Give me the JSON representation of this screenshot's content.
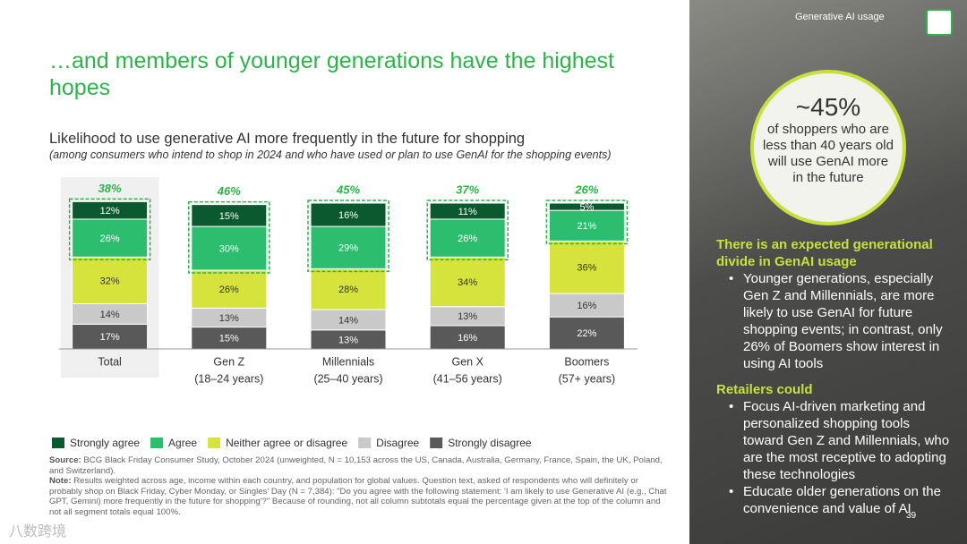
{
  "header": {
    "title": "…and members of younger generations have the highest hopes"
  },
  "chart_data": {
    "type": "bar",
    "stacked": true,
    "title": "Likelihood to use generative AI more frequently in the future for shopping",
    "subtitle": "(among consumers who intend to shop in 2024 and who have used or plan to use GenAI for the shopping events)",
    "categories": [
      "Total",
      "Gen Z",
      "Millennials",
      "Gen X",
      "Boomers"
    ],
    "category_sublabels": [
      null,
      "(18–24 years)",
      "(25–40 years)",
      "(41–56 years)",
      "(57+ years)"
    ],
    "highlight": 0,
    "ylim": [
      0,
      100
    ],
    "series": [
      {
        "name": "Strongly agree",
        "color": "#0b5a2f",
        "label_color": "#ffffff",
        "values": [
          12,
          15,
          16,
          11,
          5
        ],
        "value_labels": [
          "12%",
          "15%",
          "16%",
          "11%",
          "5%"
        ]
      },
      {
        "name": "Agree",
        "color": "#2dbd6e",
        "label_color": "#ffffff",
        "values": [
          26,
          30,
          29,
          26,
          21
        ],
        "value_labels": [
          "26%",
          "30%",
          "29%",
          "26%",
          "21%"
        ]
      },
      {
        "name": "Neither agree or disagree",
        "color": "#d6e33c",
        "label_color": "#333333",
        "values": [
          32,
          26,
          28,
          34,
          36
        ],
        "value_labels": [
          "32%",
          "26%",
          "28%",
          "34%",
          "36%"
        ]
      },
      {
        "name": "Disagree",
        "color": "#c9c9c9",
        "label_color": "#333333",
        "values": [
          14,
          13,
          14,
          13,
          16
        ],
        "value_labels": [
          "14%",
          "13%",
          "14%",
          "13%",
          "16%"
        ]
      },
      {
        "name": "Strongly disagree",
        "color": "#595959",
        "label_color": "#ffffff",
        "values": [
          17,
          15,
          13,
          16,
          22
        ],
        "value_labels": [
          "17%",
          "15%",
          "13%",
          "16%",
          "22%"
        ]
      }
    ],
    "totals": {
      "color": "#2db34a",
      "values": [
        38,
        46,
        45,
        37,
        26
      ],
      "value_labels": [
        "38%",
        "46%",
        "45%",
        "37%",
        "26%"
      ]
    }
  },
  "notes": {
    "source_label": "Source:",
    "source": "BCG Black Friday Consumer Study, October 2024 (unweighted, N = 10,153 across the US, Canada, Australia, Germany, France, Spain, the UK, Poland, and Switzerland).",
    "note_label": "Note:",
    "note": "Results weighted across age, income within each country, and population for global values. Question text, asked of respondents who will definitely or probably shop on Black Friday, Cyber Monday, or Singles' Day (N = 7,384): \"Do you agree with the following statement: 'I am likely to use Generative AI (e.g., Chat GPT, Gemini) more frequently in the future for shopping'?\" Because of rounding, not all column subtotals equal the percentage given at the top of the column and not all segment totals equal 100%."
  },
  "page_number": "39",
  "watermark": "八数跨境",
  "sidebar": {
    "tag": "Generative AI usage",
    "stat": "~45%",
    "stat_text": "of shoppers who are less than 40 years old will use GenAI more in the future",
    "sections": [
      {
        "heading": "There is an expected generational divide in GenAI usage",
        "bullets": [
          "Younger generations, especially Gen Z and Millennials, are more likely to use GenAI for future shopping events; in contrast, only 26% of Boomers show interest in using AI tools"
        ]
      },
      {
        "heading": "Retailers could",
        "bullets": [
          "Focus AI-driven marketing and personalized shopping tools toward Gen Z and Millennials, who are the most receptive to adopting these technologies",
          "Educate older generations on the convenience and value of AI"
        ]
      }
    ]
  }
}
